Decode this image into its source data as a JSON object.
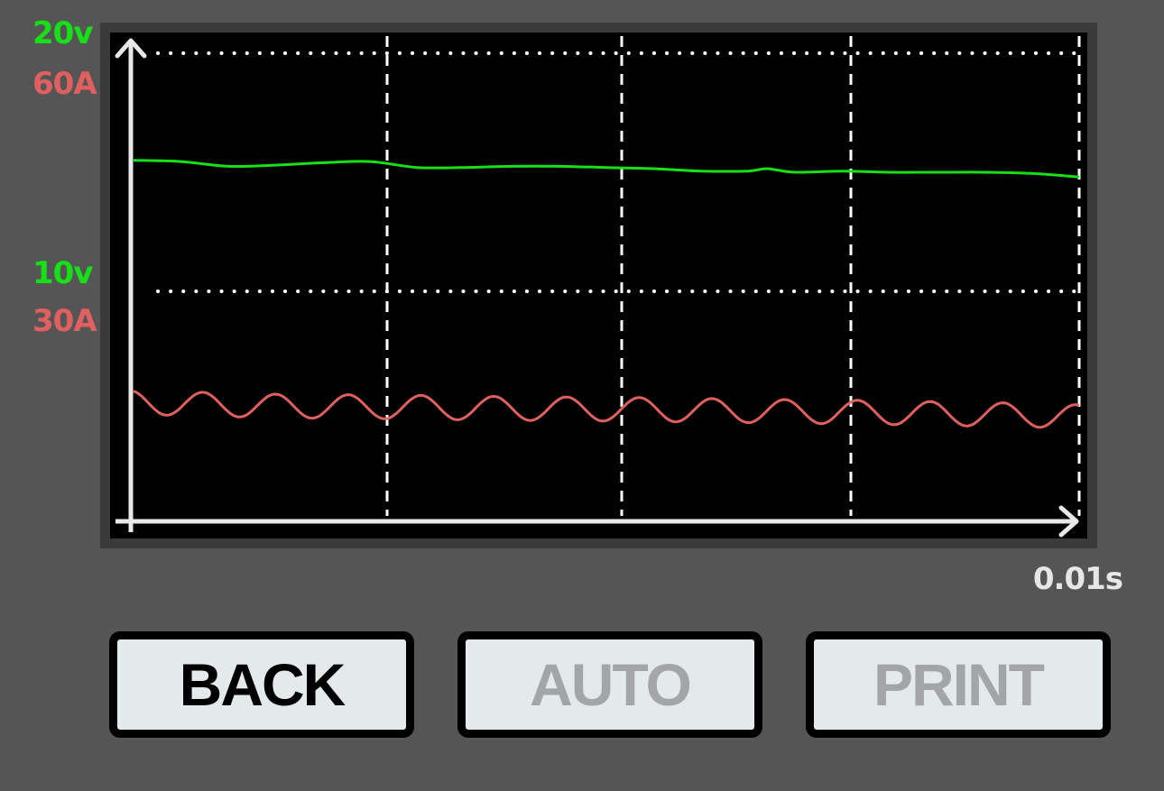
{
  "y_axis": {
    "top_volt_label": "20v",
    "top_amp_label": "60A",
    "mid_volt_label": "10v",
    "mid_amp_label": "30A"
  },
  "x_axis": {
    "time_label": "0.01s"
  },
  "buttons": {
    "back": "BACK",
    "auto": "AUTO",
    "print": "PRINT"
  },
  "colors": {
    "background": "#555555",
    "voltage_trace": "#18e018",
    "current_trace": "#e06060",
    "grid": "#ffffff",
    "button_disabled_text": "#a3a6a7"
  },
  "chart_data": {
    "type": "line",
    "ylim_volts": [
      0,
      20
    ],
    "ylim_amps": [
      0,
      60
    ],
    "x": [
      0,
      0.05,
      0.1,
      0.15,
      0.2,
      0.25,
      0.3,
      0.35,
      0.4,
      0.45,
      0.5,
      0.55,
      0.6,
      0.65,
      0.67,
      0.7,
      0.75,
      0.8,
      0.85,
      0.9,
      0.95,
      1.0
    ],
    "series": [
      {
        "unit": "v",
        "values": [
          15.5,
          15.45,
          15.25,
          15.3,
          15.4,
          15.45,
          15.2,
          15.2,
          15.25,
          15.25,
          15.2,
          15.15,
          15.05,
          15.05,
          15.15,
          15.0,
          15.05,
          15.0,
          15.0,
          15.0,
          14.95,
          14.8
        ]
      },
      {
        "unit": "A",
        "amplitude_A": 1.5,
        "oscillation_cycles": 13,
        "baseline_A": [
          16.0,
          15.85,
          15.7,
          15.55,
          15.5,
          15.45,
          15.4,
          15.3,
          15.25,
          15.2,
          15.15,
          15.1,
          15.0,
          14.95,
          14.9,
          14.85,
          14.8,
          14.7,
          14.6,
          14.5,
          14.4,
          14.2
        ]
      }
    ]
  }
}
